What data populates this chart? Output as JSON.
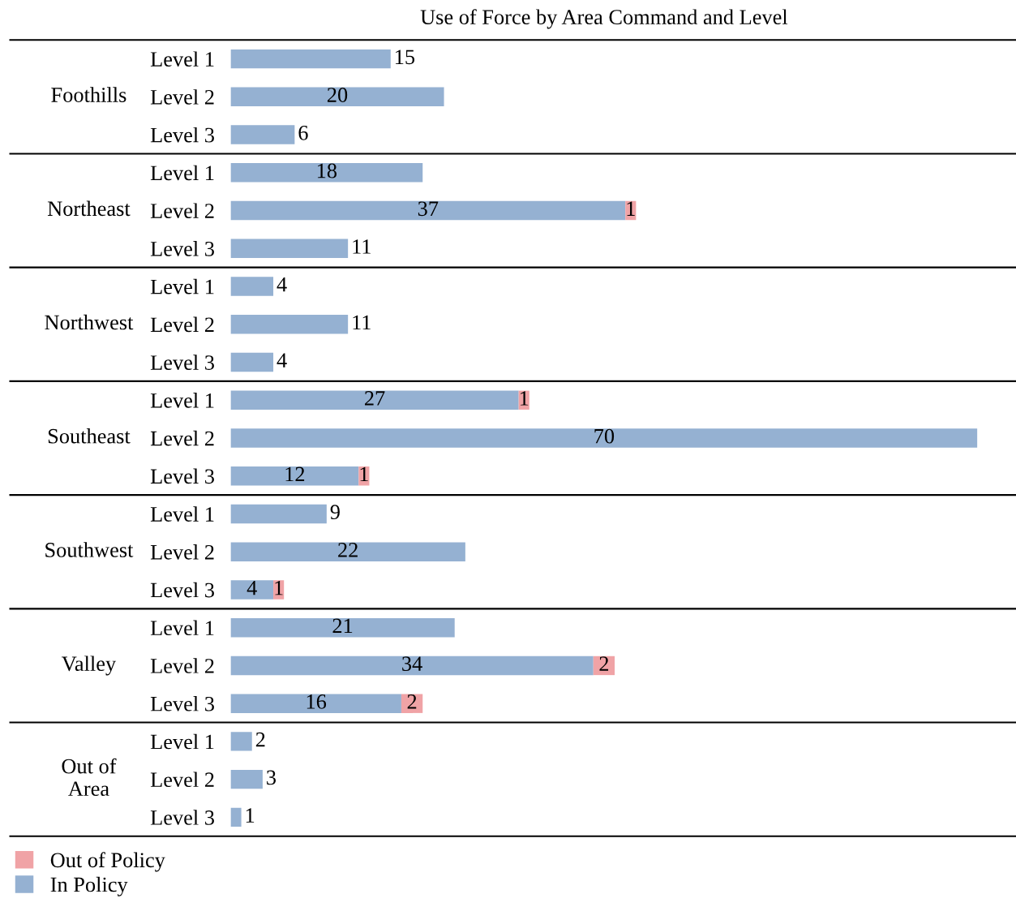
{
  "chart_data": {
    "type": "bar",
    "orientation": "horizontal",
    "stacked": true,
    "title": "Use of Force by Area Command and Level",
    "categories": [
      "Level 1",
      "Level 2",
      "Level 3",
      "Level 1",
      "Level 2",
      "Level 3",
      "Level 1",
      "Level 2",
      "Level 3",
      "Level 1",
      "Level 2",
      "Level 3",
      "Level 1",
      "Level 2",
      "Level 3",
      "Level 1",
      "Level 2",
      "Level 3",
      "Level 1",
      "Level 2",
      "Level 3"
    ],
    "annotations": [
      "Foothills",
      "Northeast",
      "Northwest",
      "Southeast",
      "Southwest",
      "Valley",
      "Out of\nArea"
    ],
    "series": [
      {
        "name": "In Policy",
        "color": "#95b1d2",
        "values": [
          15,
          20,
          6,
          18,
          37,
          11,
          4,
          11,
          4,
          27,
          70,
          12,
          9,
          22,
          4,
          21,
          34,
          16,
          2,
          3,
          1
        ]
      },
      {
        "name": "Out of Policy",
        "color": "#f0a3a6",
        "values": [
          null,
          null,
          null,
          null,
          1,
          null,
          null,
          null,
          null,
          1,
          null,
          1,
          null,
          null,
          1,
          null,
          2,
          2,
          null,
          null,
          null
        ]
      }
    ],
    "data_labels": true,
    "legend": "bottom left",
    "grid": false
  }
}
